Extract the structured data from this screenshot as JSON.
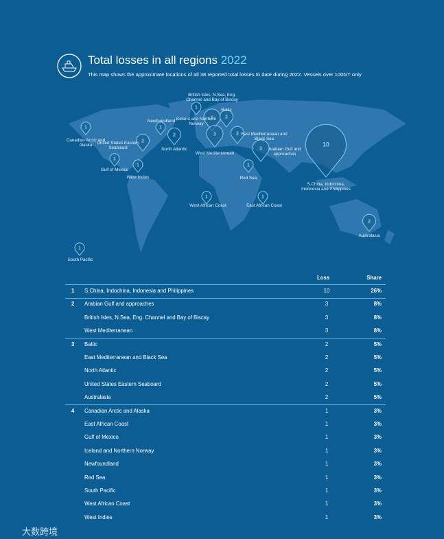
{
  "header": {
    "title": "Total losses in all regions",
    "year": "2022",
    "subtitle": "This map shows the approximate locations of all 38 reported total losses to date during 2022. Vessels over 100GT only"
  },
  "map": {
    "pins": [
      {
        "label": "Canadian Arctic and Alaska",
        "count": 1
      },
      {
        "label": "United States Eastern Seaboard",
        "count": 2
      },
      {
        "label": "Newfoundland",
        "count": 1
      },
      {
        "label": "North Atlantic",
        "count": 2
      },
      {
        "label": "Gulf of Mexico",
        "count": 1
      },
      {
        "label": "West Indies",
        "count": 1
      },
      {
        "label": "British Isles, N.Sea, Eng. Channel and Bay of Biscay",
        "count": 3
      },
      {
        "label": "Iceland and Northern Norway",
        "count": 1
      },
      {
        "label": "Baltic",
        "count": 2
      },
      {
        "label": "West Mediterranean",
        "count": 3
      },
      {
        "label": "East Mediterranean and Black Sea",
        "count": 2
      },
      {
        "label": "Arabian Gulf and approaches",
        "count": 3
      },
      {
        "label": "Red Sea",
        "count": 1
      },
      {
        "label": "S.China, Indochina, Indonesia and Philippines",
        "count": 10
      },
      {
        "label": "West African Coast",
        "count": 1
      },
      {
        "label": "East African Coast",
        "count": 1
      },
      {
        "label": "Australasia",
        "count": 2
      },
      {
        "label": "South Pacific",
        "count": 1
      }
    ]
  },
  "table": {
    "header": {
      "loss": "Loss",
      "share": "Share"
    },
    "groups": [
      {
        "rank": "1",
        "rows": [
          {
            "region": "S.China, Indochina, Indonesia and Philippines",
            "loss": 10,
            "share": "26%"
          }
        ]
      },
      {
        "rank": "2",
        "rows": [
          {
            "region": "Arabian Gulf and approaches",
            "loss": 3,
            "share": "8%"
          },
          {
            "region": "British Isles, N.Sea, Eng. Channel and Bay of Biscay",
            "loss": 3,
            "share": "8%"
          },
          {
            "region": "West Mediterranean",
            "loss": 3,
            "share": "8%"
          }
        ]
      },
      {
        "rank": "3",
        "rows": [
          {
            "region": "Baltic",
            "loss": 2,
            "share": "5%"
          },
          {
            "region": "East Mediterranean and Black Sea",
            "loss": 2,
            "share": "5%"
          },
          {
            "region": "North Atlantic",
            "loss": 2,
            "share": "5%"
          },
          {
            "region": "United States Eastern Seaboard",
            "loss": 2,
            "share": "5%"
          },
          {
            "region": "Australasia",
            "loss": 2,
            "share": "5%"
          }
        ]
      },
      {
        "rank": "4",
        "rows": [
          {
            "region": "Canadian Arctic and Alaska",
            "loss": 1,
            "share": "3%"
          },
          {
            "region": "East African Coast",
            "loss": 1,
            "share": "3%"
          },
          {
            "region": "Gulf of Mexico",
            "loss": 1,
            "share": "3%"
          },
          {
            "region": "Iceland and Northern Norway",
            "loss": 1,
            "share": "3%"
          },
          {
            "region": "Newfoundland",
            "loss": 1,
            "share": "3%"
          },
          {
            "region": "Red Sea",
            "loss": 1,
            "share": "3%"
          },
          {
            "region": "South Pacific",
            "loss": 1,
            "share": "3%"
          },
          {
            "region": "West African Coast",
            "loss": 1,
            "share": "3%"
          },
          {
            "region": "West Indies",
            "loss": 1,
            "share": "3%"
          }
        ]
      }
    ]
  },
  "watermark": "大数跨境"
}
